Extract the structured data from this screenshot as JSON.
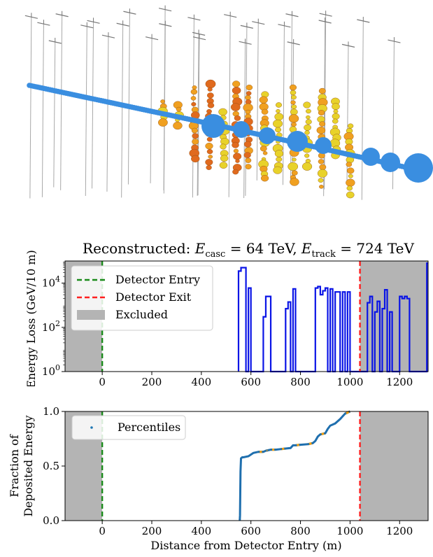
{
  "event_display": {
    "track_color": "#3a8ee0",
    "string_color": "#a8a8a8",
    "hit_colors": [
      "#e06a1e",
      "#f0a020",
      "#e8d22a"
    ]
  },
  "chart_data": [
    {
      "type": "line",
      "title": "Reconstructed: E_casc = 64 TeV, E_track = 724 TeV",
      "title_parts": {
        "prefix": "Reconstructed: ",
        "casc_symbol": "E",
        "casc_sub": "casc",
        "casc_value": " = 64 TeV, ",
        "track_symbol": "E",
        "track_sub": "track",
        "track_value": " = 724 TeV"
      },
      "xlabel": "",
      "ylabel": "Energy Loss (GeV/10 m)",
      "xlim": [
        -150,
        1315
      ],
      "ylim": [
        1,
        100000
      ],
      "yscale": "log",
      "xticks": [
        0,
        200,
        400,
        600,
        800,
        1000,
        1200
      ],
      "yticks": [
        {
          "value": 1,
          "base": "10",
          "exp": "0"
        },
        {
          "value": 100,
          "base": "10",
          "exp": "2"
        },
        {
          "value": 10000,
          "base": "10",
          "exp": "4"
        }
      ],
      "excluded_regions": [
        [
          -150,
          0
        ],
        [
          1040,
          1315
        ]
      ],
      "entry_x": 0,
      "exit_x": 1040,
      "series": [
        {
          "color": "#0a14e6",
          "steps": [
            [
              550,
              35000
            ],
            [
              560,
              50000
            ],
            [
              570,
              50000
            ],
            [
              580,
              1
            ],
            [
              590,
              6000
            ],
            [
              600,
              1
            ],
            [
              650,
              300
            ],
            [
              660,
              2500
            ],
            [
              670,
              2500
            ],
            [
              680,
              1
            ],
            [
              690,
              1
            ],
            [
              740,
              700
            ],
            [
              750,
              1400
            ],
            [
              760,
              1
            ],
            [
              770,
              5500
            ],
            [
              780,
              1
            ],
            [
              860,
              6000
            ],
            [
              870,
              7000
            ],
            [
              880,
              3000
            ],
            [
              890,
              4500
            ],
            [
              900,
              6000
            ],
            [
              910,
              1
            ],
            [
              920,
              5500
            ],
            [
              930,
              1
            ],
            [
              940,
              4000
            ],
            [
              950,
              4000
            ],
            [
              960,
              1
            ],
            [
              970,
              4000
            ],
            [
              980,
              1
            ],
            [
              990,
              4000
            ],
            [
              1000,
              1
            ],
            [
              1070,
              1300
            ],
            [
              1080,
              2500
            ],
            [
              1090,
              1
            ],
            [
              1100,
              500
            ],
            [
              1110,
              1500
            ],
            [
              1120,
              1
            ],
            [
              1130,
              700
            ],
            [
              1140,
              5000
            ],
            [
              1150,
              1
            ],
            [
              1160,
              500
            ],
            [
              1170,
              1
            ],
            [
              1200,
              2500
            ],
            [
              1210,
              2000
            ],
            [
              1220,
              2500
            ],
            [
              1230,
              2000
            ],
            [
              1240,
              1
            ],
            [
              1310,
              80000
            ],
            [
              1315,
              80000
            ]
          ]
        }
      ],
      "legend": {
        "placement": "top-left",
        "entries": [
          {
            "label": "Detector Entry",
            "style": "dashed",
            "color": "#1a8a1a"
          },
          {
            "label": "Detector Exit",
            "style": "dashed",
            "color": "#ff2020"
          },
          {
            "label": "Excluded",
            "style": "patch",
            "color": "#b4b4b4"
          }
        ]
      }
    },
    {
      "type": "line",
      "title": "",
      "xlabel": "Distance from Detector Entry (m)",
      "ylabel": "Fraction of Deposited Energy",
      "ylabel_lines": [
        "Fraction of",
        "Deposited Energy"
      ],
      "xlim": [
        -150,
        1315
      ],
      "ylim": [
        0,
        1
      ],
      "xticks": [
        0,
        200,
        400,
        600,
        800,
        1000,
        1200
      ],
      "yticks": [
        0.0,
        0.5,
        1.0
      ],
      "ytick_labels": [
        "0.0",
        "0.5",
        "1.0"
      ],
      "excluded_regions": [
        [
          -150,
          0
        ],
        [
          1040,
          1315
        ]
      ],
      "entry_x": 0,
      "exit_x": 1040,
      "series": [
        {
          "color": "#1f6fae",
          "highlight_color": "#f5a010",
          "x": [
            555,
            556,
            557,
            558,
            560,
            565,
            570,
            590,
            610,
            630,
            650,
            660,
            670,
            680,
            700,
            720,
            740,
            760,
            770,
            780,
            800,
            830,
            850,
            860,
            870,
            880,
            900,
            910,
            920,
            940,
            960,
            980,
            1000
          ],
          "y": [
            0.0,
            0.05,
            0.25,
            0.45,
            0.57,
            0.58,
            0.58,
            0.59,
            0.62,
            0.63,
            0.63,
            0.64,
            0.645,
            0.65,
            0.65,
            0.655,
            0.66,
            0.665,
            0.69,
            0.69,
            0.695,
            0.7,
            0.71,
            0.73,
            0.77,
            0.79,
            0.8,
            0.84,
            0.87,
            0.89,
            0.93,
            0.98,
            1.0
          ]
        }
      ],
      "legend": {
        "placement": "top-left",
        "entries": [
          {
            "label": "Percentiles",
            "style": "marker",
            "color": "#1f77b4"
          }
        ]
      }
    }
  ]
}
